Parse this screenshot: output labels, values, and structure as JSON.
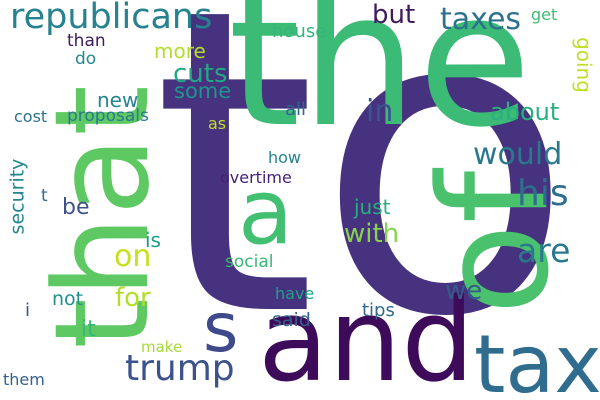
{
  "words": [
    {
      "text": "to",
      "color": "#46327e"
    },
    {
      "text": "the",
      "color": "#3bbb75"
    },
    {
      "text": "that",
      "color": "#5ec962"
    },
    {
      "text": "of",
      "color": "#4ac16d"
    },
    {
      "text": "and",
      "color": "#3e0a5a"
    },
    {
      "text": "a",
      "color": "#43bf71"
    },
    {
      "text": "tax",
      "color": "#2f6c8e"
    },
    {
      "text": "s",
      "color": "#3e4a89"
    },
    {
      "text": "republicans",
      "color": "#26828e"
    },
    {
      "text": "trump",
      "color": "#3b528b"
    },
    {
      "text": "taxes",
      "color": "#2c728e"
    },
    {
      "text": "his",
      "color": "#2e6d8e"
    },
    {
      "text": "would",
      "color": "#2a788e"
    },
    {
      "text": "are",
      "color": "#2a788e"
    },
    {
      "text": "on",
      "color": "#c8e020"
    },
    {
      "text": "cuts",
      "color": "#22a884"
    },
    {
      "text": "but",
      "color": "#3e1a5e"
    },
    {
      "text": "in",
      "color": "#3a548c"
    },
    {
      "text": "about",
      "color": "#2ab07f"
    },
    {
      "text": "with",
      "color": "#86d549"
    },
    {
      "text": "we",
      "color": "#38598c"
    },
    {
      "text": "for",
      "color": "#b5de2b"
    },
    {
      "text": "more",
      "color": "#b2dd2d"
    },
    {
      "text": "some",
      "color": "#1f958b"
    },
    {
      "text": "new",
      "color": "#25858e"
    },
    {
      "text": "be",
      "color": "#3b528b"
    },
    {
      "text": "going",
      "color": "#bddf26"
    },
    {
      "text": "is",
      "color": "#1e9c89"
    },
    {
      "text": "it",
      "color": "#35b779"
    },
    {
      "text": "security",
      "color": "#24868e"
    },
    {
      "text": "social",
      "color": "#37b878"
    },
    {
      "text": "said",
      "color": "#34608d"
    },
    {
      "text": "just",
      "color": "#29af7f"
    },
    {
      "text": "house",
      "color": "#33b67a"
    },
    {
      "text": "get",
      "color": "#40bd72"
    },
    {
      "text": "than",
      "color": "#3e1a5e"
    },
    {
      "text": "do",
      "color": "#24878e"
    },
    {
      "text": "all",
      "color": "#31668e"
    },
    {
      "text": "cost",
      "color": "#2c728e"
    },
    {
      "text": "proposals",
      "color": "#2a788e"
    },
    {
      "text": "as",
      "color": "#c2df23"
    },
    {
      "text": "how",
      "color": "#26828e"
    },
    {
      "text": "overtime",
      "color": "#482173"
    },
    {
      "text": "t",
      "color": "#31688e"
    },
    {
      "text": "not",
      "color": "#21918c"
    },
    {
      "text": "i",
      "color": "#3a548c"
    },
    {
      "text": "have",
      "color": "#1fa088"
    },
    {
      "text": "tips",
      "color": "#30688e"
    },
    {
      "text": "make",
      "color": "#a5db36"
    },
    {
      "text": "them",
      "color": "#33638d"
    }
  ]
}
